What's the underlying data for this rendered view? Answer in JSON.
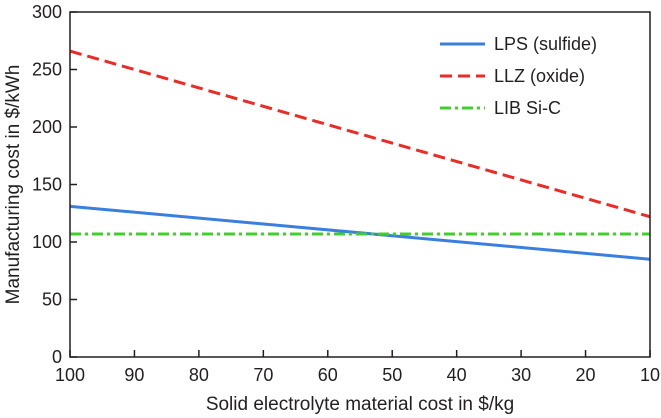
{
  "chart_data": {
    "type": "line",
    "xlabel": "Solid electrolyte material cost in $/kg",
    "ylabel": "Manufacturing cost in $/kWh",
    "xlim": [
      100,
      10
    ],
    "ylim": [
      0,
      300
    ],
    "x_reversed": true,
    "x_ticks": [
      100,
      90,
      80,
      70,
      60,
      50,
      40,
      30,
      20,
      10
    ],
    "y_ticks": [
      0,
      50,
      100,
      150,
      200,
      250,
      300
    ],
    "grid": false,
    "legend_position": "top-right",
    "series": [
      {
        "name": "LPS (sulfide)",
        "color": "#3a7fe0",
        "dash": "solid",
        "x": [
          100,
          10
        ],
        "y": [
          131,
          85
        ]
      },
      {
        "name": "LLZ (oxide)",
        "color": "#ee2a24",
        "dash": "dashed",
        "x": [
          100,
          10
        ],
        "y": [
          266,
          122
        ]
      },
      {
        "name": "LIB Si-C",
        "color": "#3fd12a",
        "dash": "dashdot",
        "x": [
          100,
          10
        ],
        "y": [
          107,
          107
        ]
      }
    ]
  }
}
